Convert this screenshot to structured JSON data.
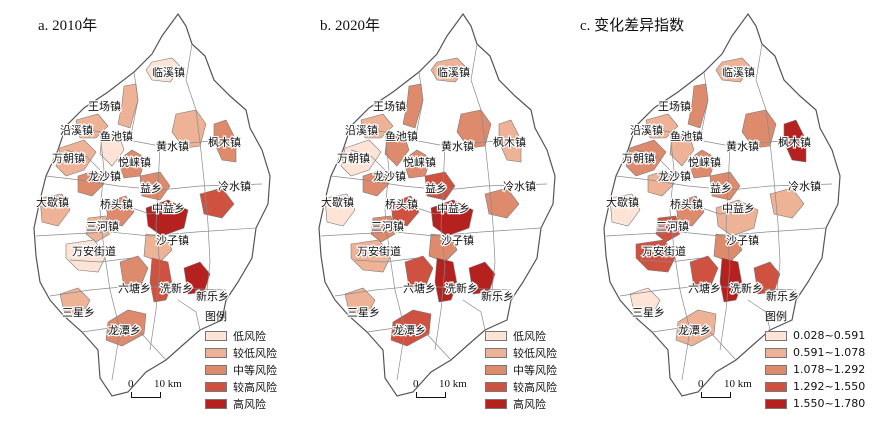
{
  "panels": [
    {
      "title": "a. 2010年"
    },
    {
      "title": "b. 2020年"
    },
    {
      "title": "c. 变化差异指数"
    }
  ],
  "towns": [
    "临溪镇",
    "王场镇",
    "沿溪镇",
    "鱼池镇",
    "黄水镇",
    "枫木镇",
    "万朝镇",
    "悦崃镇",
    "龙沙镇",
    "冷水镇",
    "益乡",
    "大歇镇",
    "桥头镇",
    "中益乡",
    "三河镇",
    "沙子镇",
    "万安街道",
    "六塘乡",
    "洗新乡",
    "新乐乡",
    "三星乡",
    "龙潭乡"
  ],
  "legend_risk": {
    "title": "图例",
    "items": [
      "低风险",
      "较低风险",
      "中等风险",
      "较高风险",
      "高风险"
    ],
    "colors": [
      "#fde4d6",
      "#eeb397",
      "#de8a6c",
      "#cf5240",
      "#b5211e"
    ]
  },
  "legend_index": {
    "title": "图例",
    "items": [
      "0.028~0.591",
      "0.591~1.078",
      "1.078~1.292",
      "1.292~1.550",
      "1.550~1.780"
    ],
    "colors": [
      "#fde4d6",
      "#eeb397",
      "#de8a6c",
      "#cf5240",
      "#b5211e"
    ]
  },
  "scale_bar": {
    "zero": "0",
    "distance": "10 km"
  },
  "town_classes": {
    "p2010": [
      0,
      1,
      1,
      0,
      1,
      2,
      1,
      2,
      2,
      3,
      2,
      1,
      2,
      4,
      1,
      1,
      0,
      2,
      3,
      4,
      1,
      2
    ],
    "p2020": [
      1,
      2,
      1,
      2,
      2,
      1,
      0,
      2,
      2,
      2,
      3,
      0,
      3,
      4,
      2,
      2,
      1,
      3,
      4,
      4,
      1,
      3
    ],
    "change": [
      1,
      2,
      1,
      1,
      2,
      4,
      2,
      2,
      1,
      1,
      2,
      0,
      2,
      1,
      3,
      2,
      3,
      3,
      4,
      3,
      0,
      1
    ]
  }
}
